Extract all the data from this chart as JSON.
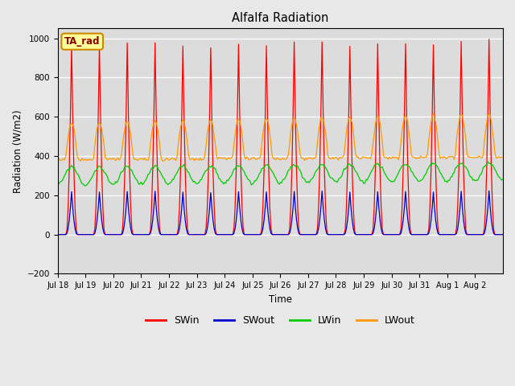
{
  "title": "Alfalfa Radiation",
  "xlabel": "Time",
  "ylabel": "Radiation (W/m2)",
  "ylim": [
    -200,
    1050
  ],
  "yticks": [
    -200,
    0,
    200,
    400,
    600,
    800,
    1000
  ],
  "xtick_labels": [
    "Jul 18",
    "Jul 19",
    "Jul 20",
    "Jul 21",
    "Jul 22",
    "Jul 23",
    "Jul 24",
    "Jul 25",
    "Jul 26",
    "Jul 27",
    "Jul 28",
    "Jul 29",
    "Jul 30",
    "Jul 31",
    "Aug 1",
    "Aug 2"
  ],
  "colors": {
    "SWin": "#ff0000",
    "SWout": "#0000cc",
    "LWin": "#00cc00",
    "LWout": "#ff9900"
  },
  "bg_color": "#dcdcdc",
  "fig_bg": "#e8e8e8",
  "annotation_text": "TA_rad",
  "annotation_bg": "#ffff99",
  "annotation_border": "#cc8800"
}
